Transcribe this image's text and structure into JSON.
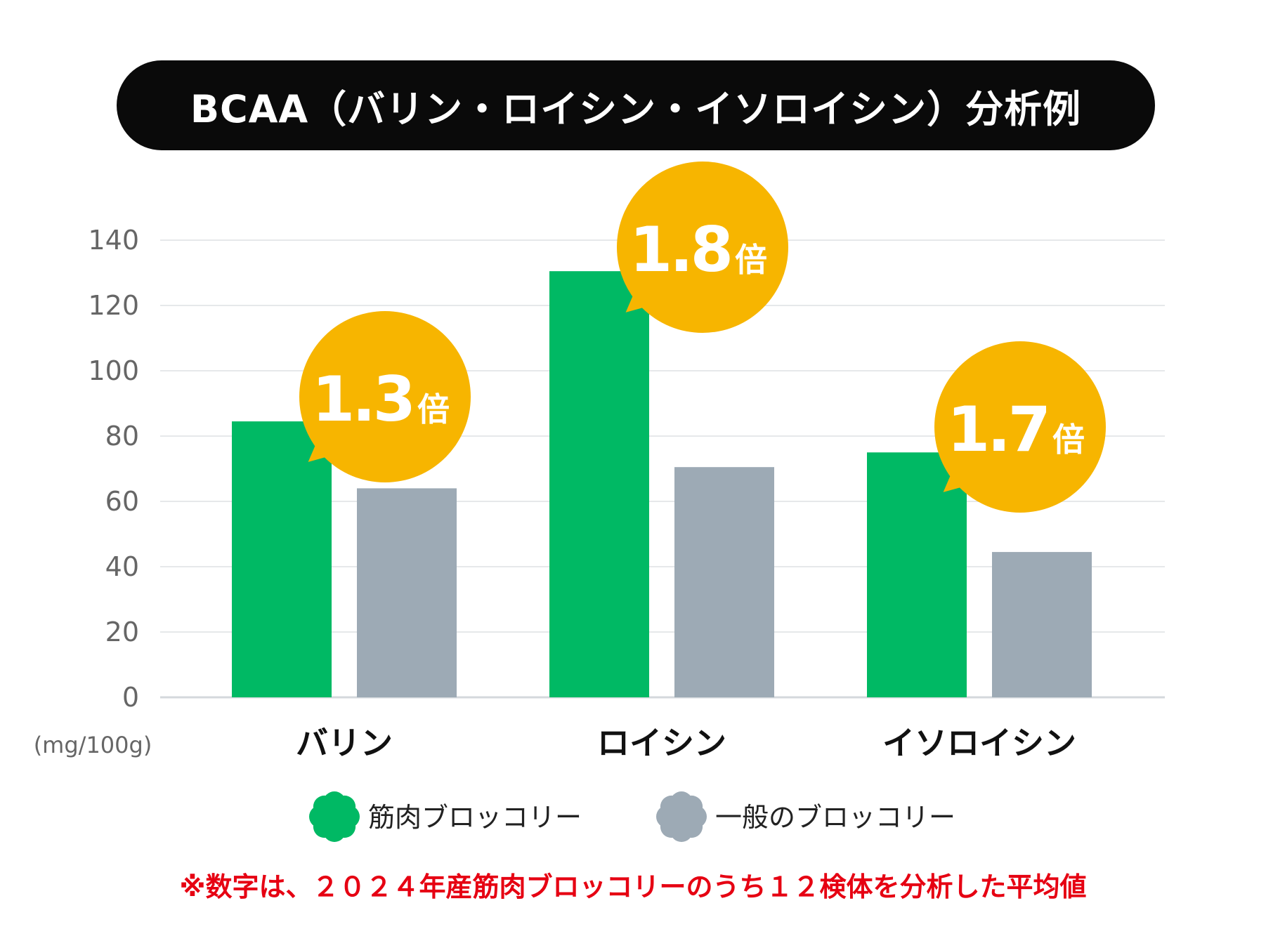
{
  "chart_data": {
    "type": "bar",
    "title": "BCAA（バリン・ロイシン・イソロイシン）分析例",
    "categories": [
      "バリン",
      "ロイシン",
      "イソロイシン"
    ],
    "series": [
      {
        "name": "筋肉ブロッコリー",
        "color": "#00b964",
        "values": [
          84.5,
          130.5,
          75
        ]
      },
      {
        "name": "一般のブロッコリー",
        "color": "#9daab5",
        "values": [
          64,
          70.5,
          44.5
        ]
      }
    ],
    "ratios": [
      {
        "value": "1.3",
        "suffix": "倍"
      },
      {
        "value": "1.8",
        "suffix": "倍"
      },
      {
        "value": "1.7",
        "suffix": "倍"
      }
    ],
    "ratio_color": "#f7b500",
    "ylabel": "(mg/100g)",
    "ylim": [
      0,
      140
    ],
    "yticks": [
      0,
      20,
      40,
      60,
      80,
      100,
      120,
      140
    ],
    "grid": true,
    "legend_position": "bottom"
  },
  "footnote": "※数字は、２０２４年産筋肉ブロッコリーのうち１２検体を分析した平均値"
}
